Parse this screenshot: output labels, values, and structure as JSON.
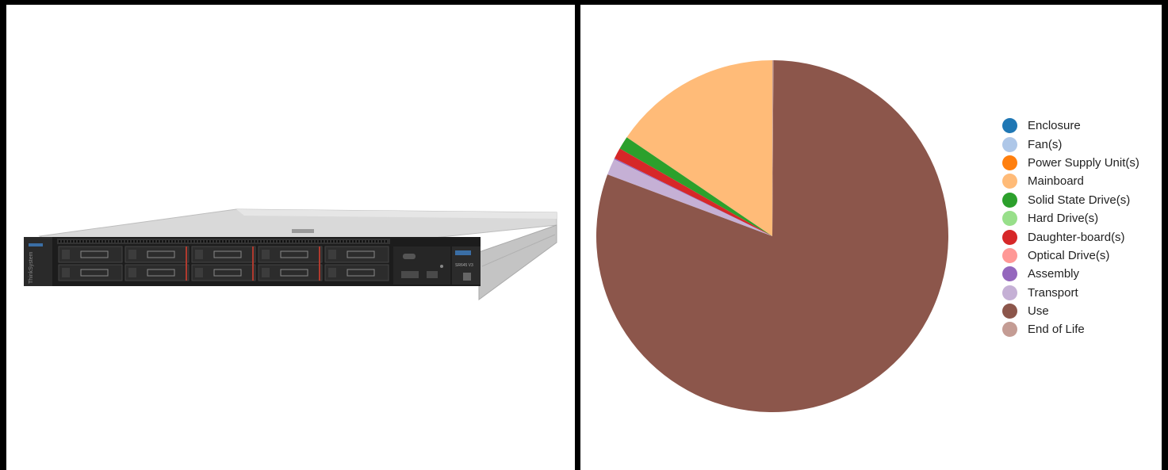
{
  "product_image": {
    "brand_text": "ThinkSystem",
    "model_text": "SR645 V3"
  },
  "chart_data": {
    "type": "pie",
    "title": "",
    "start_angle_deg": 0,
    "direction": "counterclockwise",
    "slices": [
      {
        "label": "Enclosure",
        "value": 0.0,
        "color": "#1f77b4"
      },
      {
        "label": "Fan(s)",
        "value": 0.0,
        "color": "#aec7e8"
      },
      {
        "label": "Power Supply Unit(s)",
        "value": 0.0,
        "color": "#ff7f0e"
      },
      {
        "label": "Mainboard",
        "value": 15.5,
        "color": "#ffbb78"
      },
      {
        "label": "Solid State Drive(s)",
        "value": 1.2,
        "color": "#2ca02c"
      },
      {
        "label": "Hard Drive(s)",
        "value": 0.0,
        "color": "#98df8a"
      },
      {
        "label": "Daughter-board(s)",
        "value": 1.0,
        "color": "#d62728"
      },
      {
        "label": "Optical Drive(s)",
        "value": 0.0,
        "color": "#ff9896"
      },
      {
        "label": "Assembly",
        "value": 0.1,
        "color": "#9467bd"
      },
      {
        "label": "Transport",
        "value": 1.5,
        "color": "#c5b0d5"
      },
      {
        "label": "Use",
        "value": 80.6,
        "color": "#8c564b"
      },
      {
        "label": "End of Life",
        "value": 0.1,
        "color": "#c49c94"
      }
    ],
    "legend_position": "right"
  }
}
